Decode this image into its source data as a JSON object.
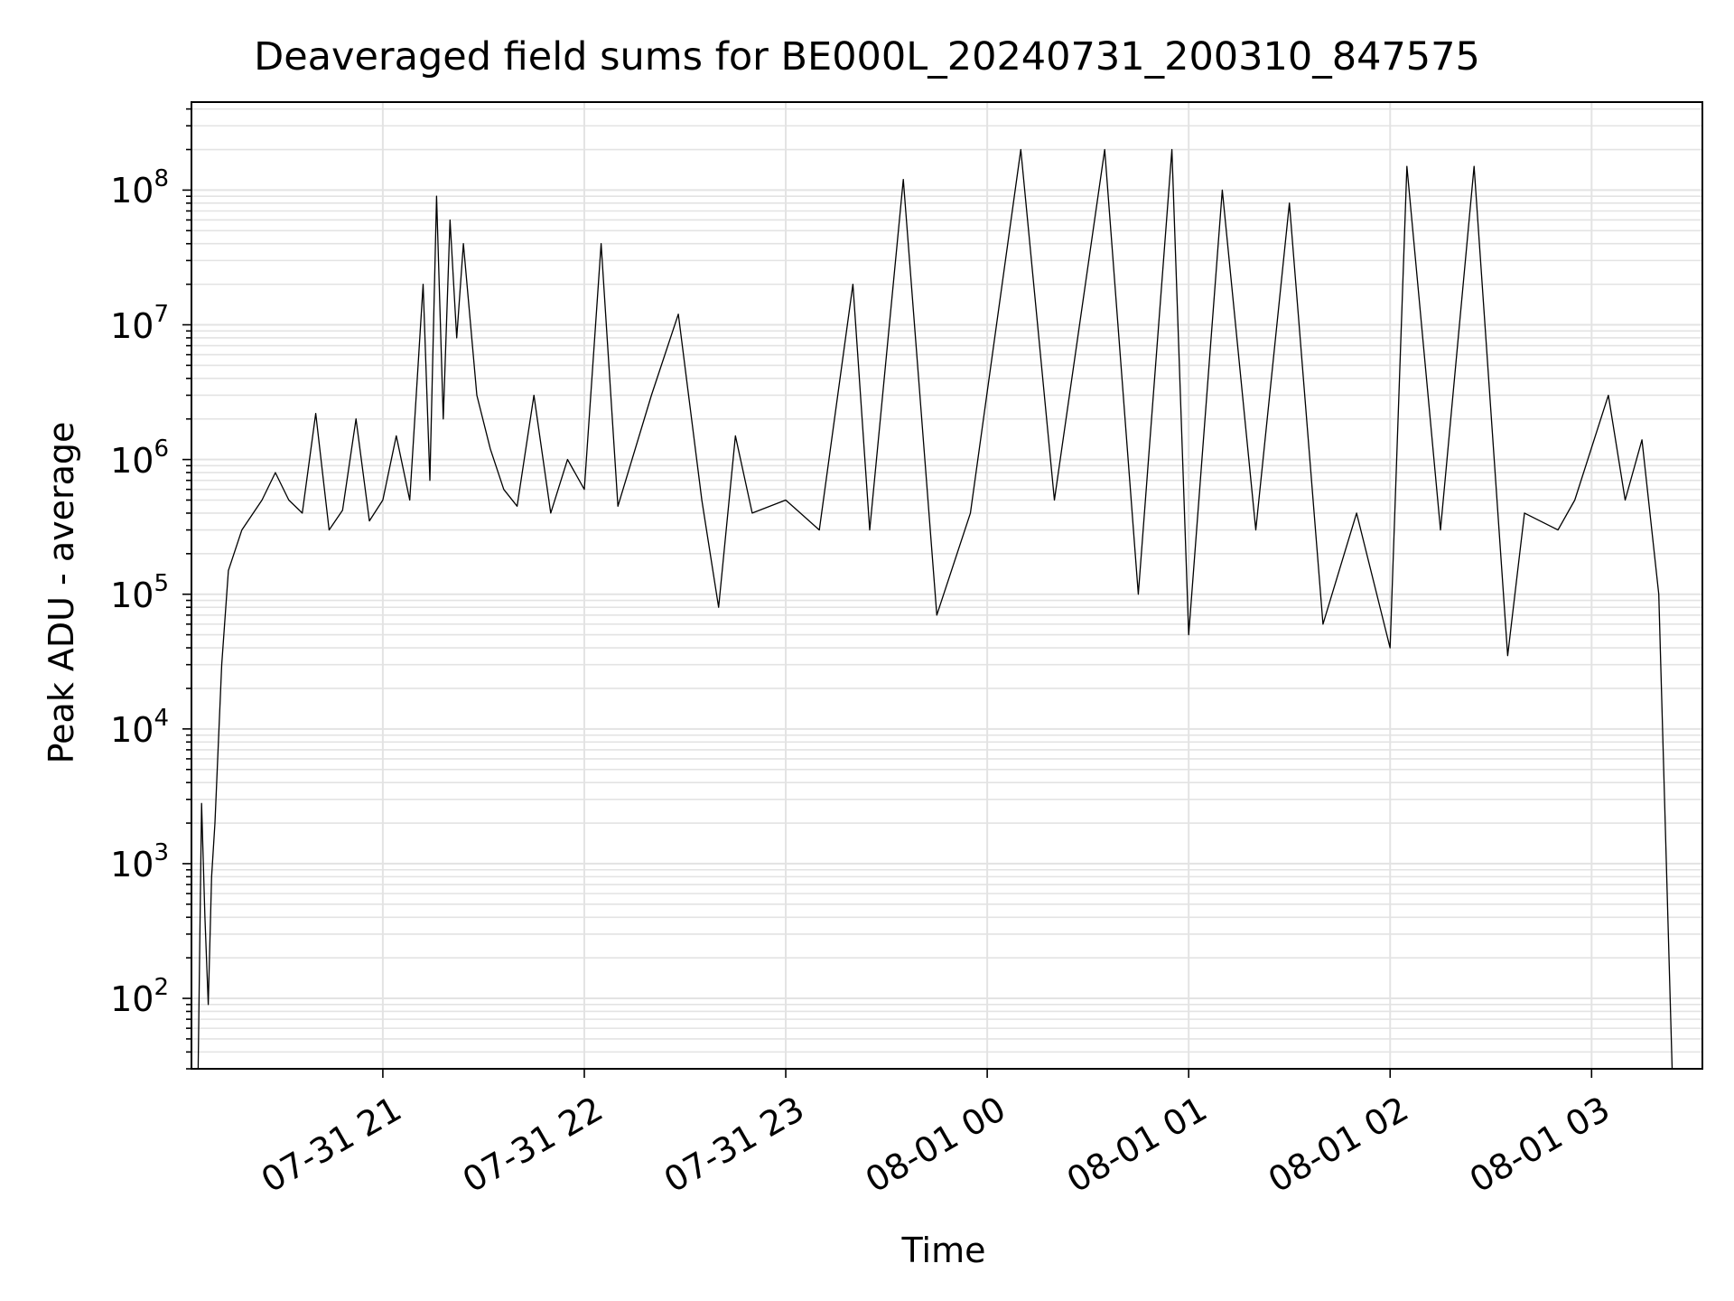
{
  "chart_data": {
    "type": "line",
    "title": "Deaveraged field sums for BE000L_20240731_200310_847575",
    "xlabel": "Time",
    "ylabel": "Peak ADU - average",
    "y_scale": "log",
    "ylim": [
      30,
      450000000
    ],
    "y_ticks": [
      {
        "base": "10",
        "exp": "2",
        "value": 100
      },
      {
        "base": "10",
        "exp": "3",
        "value": 1000
      },
      {
        "base": "10",
        "exp": "4",
        "value": 10000
      },
      {
        "base": "10",
        "exp": "5",
        "value": 100000
      },
      {
        "base": "10",
        "exp": "6",
        "value": 1000000
      },
      {
        "base": "10",
        "exp": "7",
        "value": 10000000
      },
      {
        "base": "10",
        "exp": "8",
        "value": 100000000
      }
    ],
    "x_range": [
      "2024-07-31 20:03",
      "2024-08-01 03:33"
    ],
    "x_ticks": [
      {
        "label": "07-31 21",
        "time": "2024-07-31 21:00"
      },
      {
        "label": "07-31 22",
        "time": "2024-07-31 22:00"
      },
      {
        "label": "07-31 23",
        "time": "2024-07-31 23:00"
      },
      {
        "label": "08-01 00",
        "time": "2024-08-01 00:00"
      },
      {
        "label": "08-01 01",
        "time": "2024-08-01 01:00"
      },
      {
        "label": "08-01 02",
        "time": "2024-08-01 02:00"
      },
      {
        "label": "08-01 03",
        "time": "2024-08-01 03:00"
      }
    ],
    "grid": true,
    "series": [
      {
        "color": "#000000",
        "points": [
          [
            "2024-07-31 20:05",
            30
          ],
          [
            "2024-07-31 20:06",
            2800
          ],
          [
            "2024-07-31 20:07",
            400
          ],
          [
            "2024-07-31 20:08",
            90
          ],
          [
            "2024-07-31 20:09",
            800
          ],
          [
            "2024-07-31 20:10",
            2000
          ],
          [
            "2024-07-31 20:12",
            30000
          ],
          [
            "2024-07-31 20:14",
            150000
          ],
          [
            "2024-07-31 20:18",
            300000
          ],
          [
            "2024-07-31 20:24",
            500000
          ],
          [
            "2024-07-31 20:28",
            800000
          ],
          [
            "2024-07-31 20:32",
            500000
          ],
          [
            "2024-07-31 20:36",
            400000
          ],
          [
            "2024-07-31 20:40",
            2200000
          ],
          [
            "2024-07-31 20:44",
            300000
          ],
          [
            "2024-07-31 20:48",
            420000
          ],
          [
            "2024-07-31 20:52",
            2000000
          ],
          [
            "2024-07-31 20:56",
            350000
          ],
          [
            "2024-07-31 21:00",
            500000
          ],
          [
            "2024-07-31 21:04",
            1500000
          ],
          [
            "2024-07-31 21:08",
            500000
          ],
          [
            "2024-07-31 21:12",
            20000000
          ],
          [
            "2024-07-31 21:14",
            700000
          ],
          [
            "2024-07-31 21:16",
            90000000
          ],
          [
            "2024-07-31 21:18",
            2000000
          ],
          [
            "2024-07-31 21:20",
            60000000
          ],
          [
            "2024-07-31 21:22",
            8000000
          ],
          [
            "2024-07-31 21:24",
            40000000
          ],
          [
            "2024-07-31 21:28",
            3000000
          ],
          [
            "2024-07-31 21:32",
            1200000
          ],
          [
            "2024-07-31 21:36",
            600000
          ],
          [
            "2024-07-31 21:40",
            450000
          ],
          [
            "2024-07-31 21:45",
            3000000
          ],
          [
            "2024-07-31 21:50",
            400000
          ],
          [
            "2024-07-31 21:55",
            1000000
          ],
          [
            "2024-07-31 22:00",
            600000
          ],
          [
            "2024-07-31 22:05",
            40000000
          ],
          [
            "2024-07-31 22:10",
            450000
          ],
          [
            "2024-07-31 22:20",
            3000000
          ],
          [
            "2024-07-31 22:28",
            12000000
          ],
          [
            "2024-07-31 22:35",
            500000
          ],
          [
            "2024-07-31 22:40",
            80000
          ],
          [
            "2024-07-31 22:45",
            1500000
          ],
          [
            "2024-07-31 22:50",
            400000
          ],
          [
            "2024-07-31 23:00",
            500000
          ],
          [
            "2024-07-31 23:10",
            300000
          ],
          [
            "2024-07-31 23:20",
            20000000
          ],
          [
            "2024-07-31 23:25",
            300000
          ],
          [
            "2024-07-31 23:35",
            120000000
          ],
          [
            "2024-07-31 23:45",
            70000
          ],
          [
            "2024-07-31 23:55",
            400000
          ],
          [
            "2024-08-01 00:10",
            200000000
          ],
          [
            "2024-08-01 00:20",
            500000
          ],
          [
            "2024-08-01 00:35",
            200000000
          ],
          [
            "2024-08-01 00:45",
            100000
          ],
          [
            "2024-08-01 00:55",
            200000000
          ],
          [
            "2024-08-01 01:00",
            50000
          ],
          [
            "2024-08-01 01:10",
            100000000
          ],
          [
            "2024-08-01 01:20",
            300000
          ],
          [
            "2024-08-01 01:30",
            80000000
          ],
          [
            "2024-08-01 01:40",
            60000
          ],
          [
            "2024-08-01 01:50",
            400000
          ],
          [
            "2024-08-01 02:00",
            40000
          ],
          [
            "2024-08-01 02:05",
            150000000
          ],
          [
            "2024-08-01 02:15",
            300000
          ],
          [
            "2024-08-01 02:25",
            150000000
          ],
          [
            "2024-08-01 02:35",
            35000
          ],
          [
            "2024-08-01 02:40",
            400000
          ],
          [
            "2024-08-01 02:50",
            300000
          ],
          [
            "2024-08-01 02:55",
            500000
          ],
          [
            "2024-08-01 03:05",
            3000000
          ],
          [
            "2024-08-01 03:10",
            500000
          ],
          [
            "2024-08-01 03:15",
            1400000
          ],
          [
            "2024-08-01 03:20",
            100000
          ],
          [
            "2024-08-01 03:24",
            30
          ]
        ]
      }
    ]
  }
}
